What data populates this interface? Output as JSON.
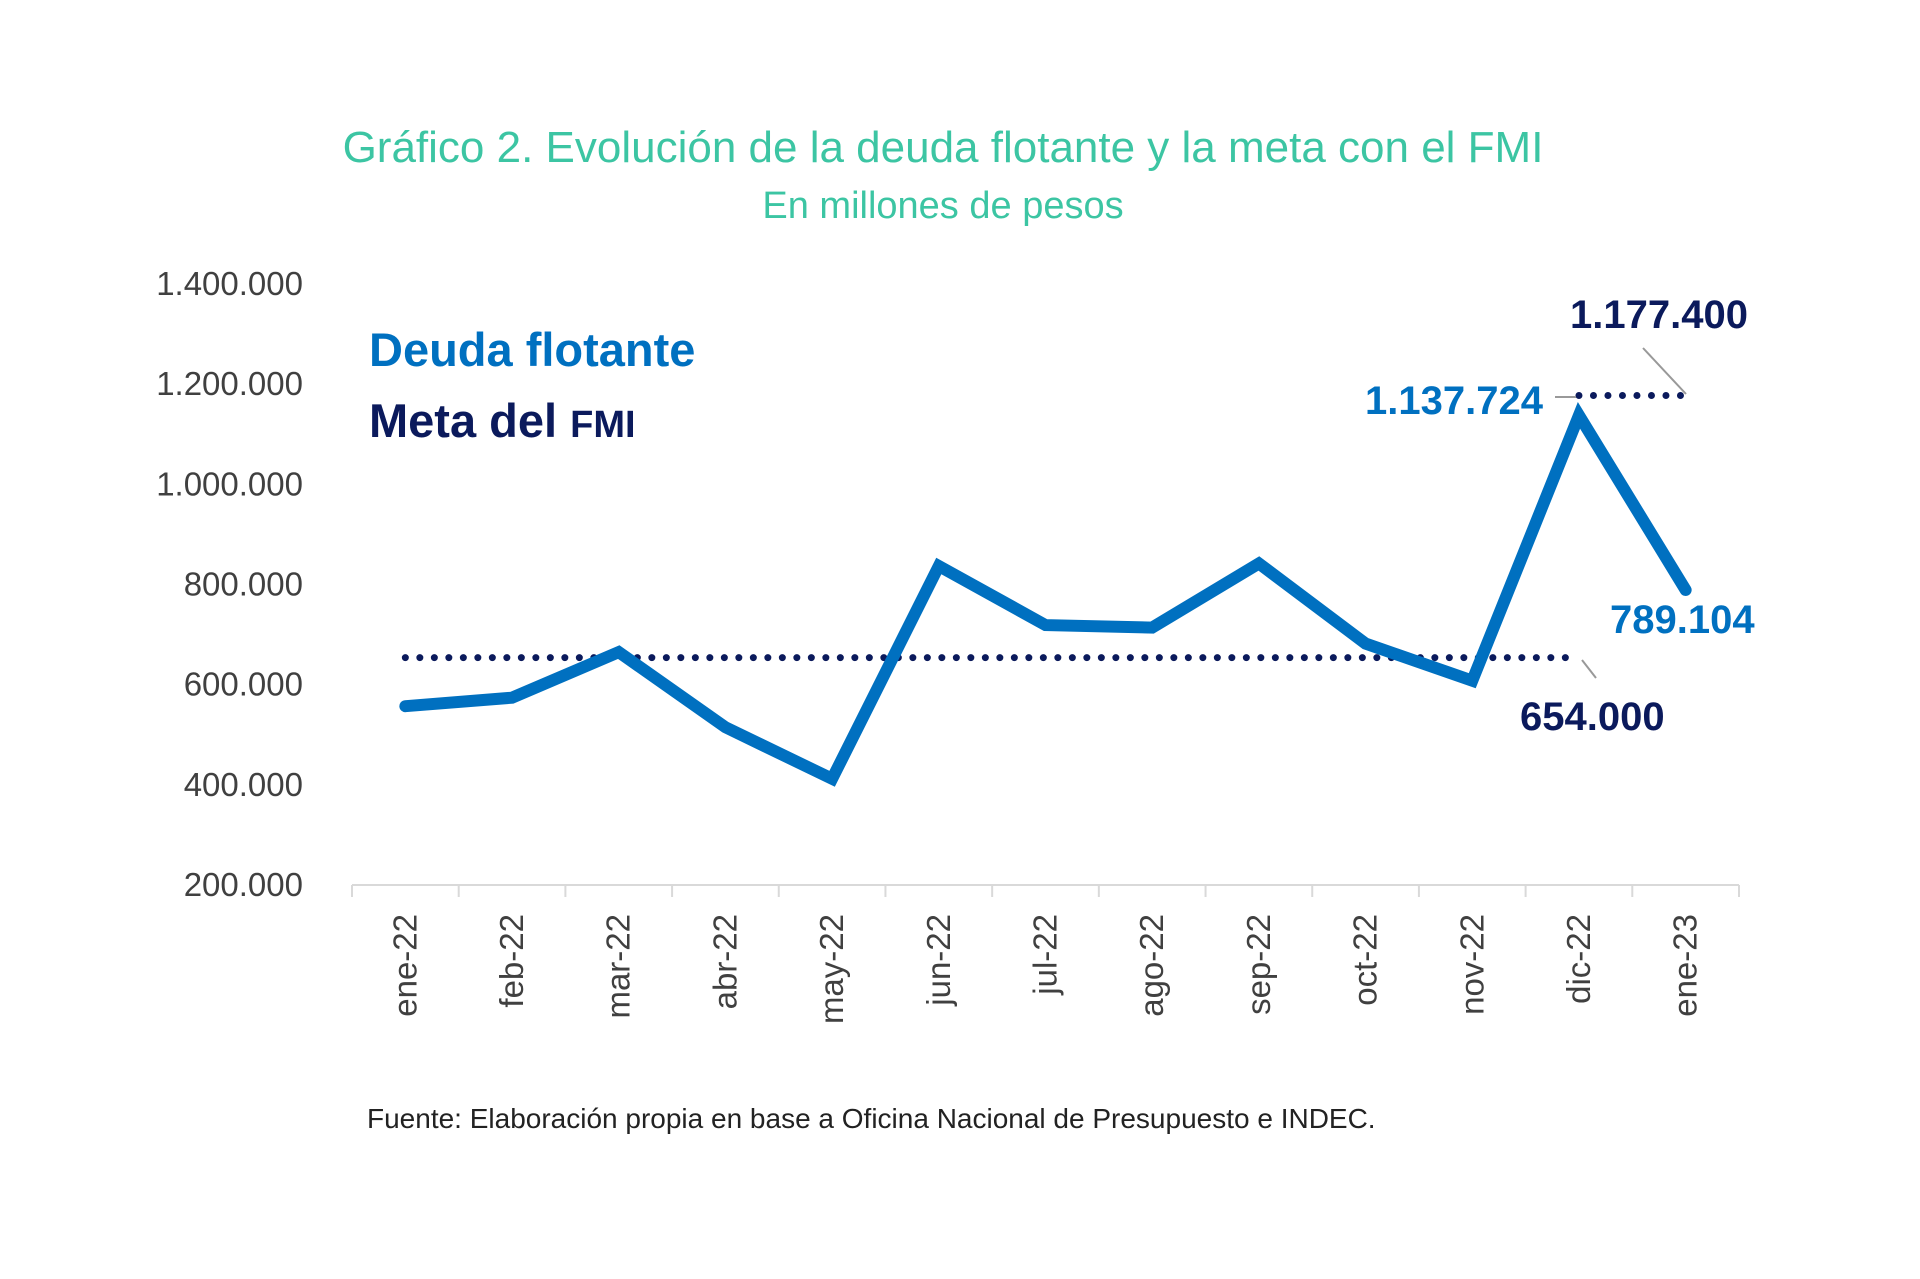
{
  "chart_data": {
    "type": "line",
    "title": "Gráfico 2. Evolución de la deuda flotante y la meta con el FMI",
    "subtitle": "En millones de pesos",
    "categories": [
      "ene-22",
      "feb-22",
      "mar-22",
      "abr-22",
      "may-22",
      "jun-22",
      "jul-22",
      "ago-22",
      "sep-22",
      "oct-22",
      "nov-22",
      "dic-22",
      "ene-23"
    ],
    "ylim": [
      200000,
      1400000
    ],
    "yticks": [
      "1.400.000",
      "1.200.000",
      "1.000.000",
      "800.000",
      "600.000",
      "400.000",
      "200.000"
    ],
    "ytick_values": [
      1400000,
      1200000,
      1000000,
      800000,
      600000,
      400000,
      200000
    ],
    "grid": false,
    "legend_position": "top-left",
    "series": [
      {
        "name": "Deuda flotante",
        "color": "#0070c0",
        "style": "solid",
        "values": [
          557000,
          574000,
          665000,
          515000,
          412000,
          837000,
          719000,
          714000,
          842000,
          682000,
          608000,
          1137724,
          789104
        ]
      },
      {
        "name": "Meta del FMI",
        "color": "#0b1a5c",
        "style": "dotted",
        "segments": [
          {
            "from": "ene-22",
            "to": "dic-22",
            "value": 654000
          },
          {
            "from": "dic-22",
            "to": "ene-23",
            "value": 1177400
          }
        ]
      }
    ],
    "legend": {
      "deuda": "Deuda flotante",
      "meta_prefix": "Meta del ",
      "meta_suffix": "FMI"
    },
    "annotations": {
      "meta_high": "1.177.400",
      "deuda_peak": "1.137.724",
      "deuda_last": "789.104",
      "meta_low": "654.000"
    },
    "source": "Fuente: Elaboración propia en base a Oficina Nacional de Presupuesto e INDEC."
  }
}
